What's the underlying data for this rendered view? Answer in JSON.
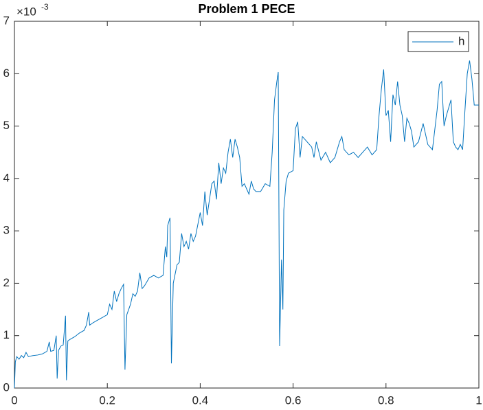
{
  "chart_data": {
    "type": "line",
    "title": "Problem 1 PECE",
    "y_multiplier": "×10",
    "y_exponent": "-3",
    "x": [
      0,
      0.002,
      0.005,
      0.01,
      0.015,
      0.02,
      0.025,
      0.03,
      0.04,
      0.05,
      0.06,
      0.07,
      0.075,
      0.078,
      0.085,
      0.09,
      0.092,
      0.095,
      0.1,
      0.105,
      0.11,
      0.112,
      0.115,
      0.12,
      0.13,
      0.14,
      0.15,
      0.155,
      0.16,
      0.162,
      0.17,
      0.18,
      0.19,
      0.2,
      0.205,
      0.21,
      0.215,
      0.22,
      0.225,
      0.23,
      0.235,
      0.238,
      0.242,
      0.25,
      0.255,
      0.26,
      0.265,
      0.27,
      0.275,
      0.28,
      0.29,
      0.3,
      0.31,
      0.32,
      0.325,
      0.328,
      0.33,
      0.335,
      0.338,
      0.342,
      0.35,
      0.355,
      0.36,
      0.365,
      0.37,
      0.375,
      0.38,
      0.385,
      0.39,
      0.4,
      0.405,
      0.41,
      0.415,
      0.42,
      0.425,
      0.43,
      0.435,
      0.44,
      0.445,
      0.45,
      0.455,
      0.46,
      0.465,
      0.47,
      0.475,
      0.48,
      0.485,
      0.49,
      0.495,
      0.5,
      0.505,
      0.51,
      0.515,
      0.52,
      0.53,
      0.54,
      0.55,
      0.555,
      0.56,
      0.565,
      0.568,
      0.571,
      0.575,
      0.578,
      0.58,
      0.585,
      0.59,
      0.6,
      0.605,
      0.61,
      0.615,
      0.62,
      0.63,
      0.64,
      0.645,
      0.65,
      0.66,
      0.67,
      0.68,
      0.69,
      0.7,
      0.705,
      0.71,
      0.72,
      0.73,
      0.74,
      0.75,
      0.76,
      0.77,
      0.78,
      0.785,
      0.79,
      0.795,
      0.8,
      0.805,
      0.81,
      0.815,
      0.82,
      0.825,
      0.83,
      0.835,
      0.84,
      0.845,
      0.85,
      0.855,
      0.86,
      0.87,
      0.88,
      0.89,
      0.9,
      0.91,
      0.915,
      0.92,
      0.925,
      0.93,
      0.94,
      0.945,
      0.95,
      0.955,
      0.96,
      0.965,
      0.97,
      0.975,
      0.98,
      0.985,
      0.99,
      1
    ],
    "series": [
      {
        "name": "h",
        "color": "#0072bd",
        "values": [
          0,
          0.5,
          0.6,
          0.55,
          0.62,
          0.58,
          0.68,
          0.6,
          0.62,
          0.63,
          0.65,
          0.7,
          0.88,
          0.7,
          0.72,
          1.0,
          0.18,
          0.72,
          0.8,
          0.82,
          1.38,
          0.15,
          0.9,
          0.93,
          0.98,
          1.05,
          1.1,
          1.2,
          1.45,
          1.2,
          1.25,
          1.3,
          1.35,
          1.4,
          1.6,
          1.5,
          1.85,
          1.65,
          1.8,
          1.9,
          1.98,
          0.35,
          1.4,
          1.6,
          1.8,
          1.75,
          1.85,
          2.2,
          1.9,
          1.95,
          2.1,
          2.15,
          2.1,
          2.15,
          2.7,
          2.5,
          3.1,
          3.25,
          0.47,
          2.0,
          2.35,
          2.4,
          2.95,
          2.7,
          2.8,
          2.65,
          2.95,
          2.8,
          2.9,
          3.35,
          3.1,
          3.75,
          3.3,
          3.6,
          3.9,
          3.95,
          3.6,
          4.3,
          3.9,
          4.2,
          4.1,
          4.5,
          4.75,
          4.4,
          4.75,
          4.6,
          4.4,
          3.85,
          3.9,
          3.8,
          3.7,
          3.95,
          3.8,
          3.75,
          3.75,
          3.9,
          3.85,
          4.5,
          5.5,
          5.85,
          6.03,
          0.8,
          2.45,
          1.5,
          3.4,
          3.95,
          4.1,
          4.15,
          4.95,
          5.08,
          4.4,
          4.8,
          4.7,
          4.6,
          4.4,
          4.7,
          4.35,
          4.5,
          4.3,
          4.4,
          4.7,
          4.8,
          4.55,
          4.45,
          4.5,
          4.4,
          4.5,
          4.6,
          4.45,
          4.55,
          5.2,
          5.7,
          6.08,
          5.2,
          5.3,
          4.7,
          5.6,
          5.4,
          5.85,
          5.4,
          5.2,
          4.7,
          5.15,
          5.05,
          4.9,
          4.6,
          4.7,
          5.05,
          4.65,
          4.55,
          5.3,
          5.8,
          5.85,
          5.0,
          5.2,
          5.5,
          4.7,
          4.6,
          4.55,
          4.65,
          4.55,
          5.3,
          6.0,
          6.25,
          5.9,
          5.4,
          5.4
        ]
      }
    ],
    "xlim": [
      0,
      1
    ],
    "xticks": [
      0,
      0.2,
      0.4,
      0.6,
      0.8,
      1
    ],
    "ylim": [
      0,
      7
    ],
    "yticks": [
      0,
      1,
      2,
      3,
      4,
      5,
      6,
      7
    ],
    "legend": "northeast"
  }
}
